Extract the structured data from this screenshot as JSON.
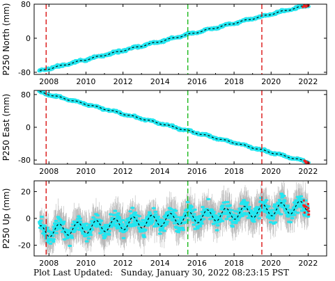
{
  "chart_data": [
    {
      "type": "line",
      "ylabel": "P250 North (mm)",
      "xlim": [
        2007.2,
        2023.0
      ],
      "ylim": [
        -85,
        80
      ],
      "yticks": [
        -80,
        0,
        80
      ],
      "xticks": [
        2008,
        2010,
        2012,
        2014,
        2016,
        2018,
        2020,
        2022
      ],
      "series": [
        {
          "values": {
            "x": [
              2007.5,
              2022.0
            ],
            "y": [
              -77,
              78
            ]
          }
        }
      ],
      "event_lines": [
        {
          "x": 2007.85,
          "color": "#dd2222"
        },
        {
          "x": 2015.5,
          "color": "#22bb22"
        },
        {
          "x": 2019.5,
          "color": "#dd2222"
        }
      ]
    },
    {
      "type": "line",
      "ylabel": "P250 East (mm)",
      "xlim": [
        2007.2,
        2023.0
      ],
      "ylim": [
        -90,
        90
      ],
      "yticks": [
        -80,
        0,
        80
      ],
      "xticks": [
        2008,
        2010,
        2012,
        2014,
        2016,
        2018,
        2020,
        2022
      ],
      "series": [
        {
          "values": {
            "x": [
              2007.5,
              2022.0
            ],
            "y": [
              86,
              -85
            ]
          }
        }
      ],
      "event_lines": [
        {
          "x": 2007.85,
          "color": "#dd2222"
        },
        {
          "x": 2015.5,
          "color": "#22bb22"
        },
        {
          "x": 2019.5,
          "color": "#dd2222"
        }
      ]
    },
    {
      "type": "line",
      "ylabel": "P250 Up (mm)",
      "xlim": [
        2007.2,
        2023.0
      ],
      "ylim": [
        -28,
        28
      ],
      "yticks": [
        -20,
        0,
        20
      ],
      "xticks": [
        2008,
        2010,
        2012,
        2014,
        2016,
        2018,
        2020,
        2022
      ],
      "series": [
        {
          "values": {
            "x": [
              2007.5,
              2022.0
            ],
            "y": [
              -10,
              9
            ]
          }
        }
      ],
      "event_lines": [
        {
          "x": 2007.85,
          "color": "#dd2222"
        },
        {
          "x": 2015.5,
          "color": "#22bb22"
        },
        {
          "x": 2019.5,
          "color": "#dd2222"
        }
      ]
    }
  ],
  "colors": {
    "data": "#22e6f0",
    "errorbar": "#b8b8b8",
    "model": "#000000",
    "recent": "#ee2222"
  },
  "footer": "Plot Last Updated:   Sunday, January 30, 2022 08:23:15 PST"
}
